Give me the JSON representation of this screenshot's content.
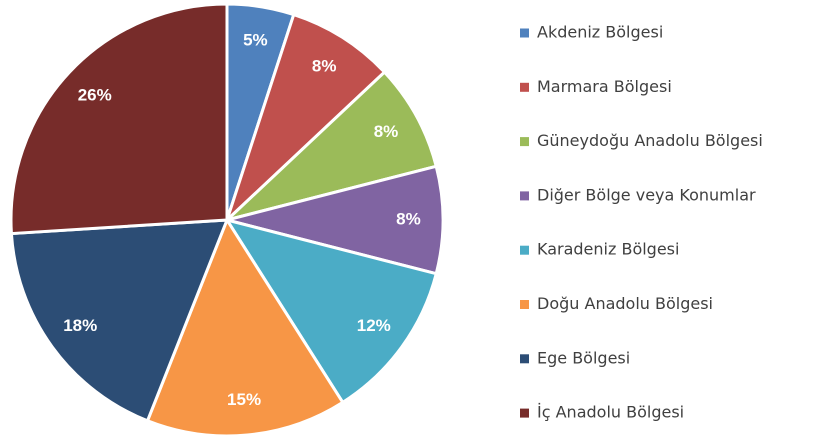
{
  "chart_data": {
    "type": "pie",
    "categories": [
      "Akdeniz Bölgesi",
      "Marmara Bölgesi",
      "Güneydoğu Anadolu Bölgesi",
      "Diğer Bölge veya Konumlar",
      "Karadeniz Bölgesi",
      "Doğu Anadolu Bölgesi",
      "Ege Bölgesi",
      "İç Anadolu Bölgesi"
    ],
    "values": [
      5,
      8,
      8,
      8,
      12,
      15,
      18,
      26
    ],
    "value_labels": [
      "5%",
      "8%",
      "8%",
      "8%",
      "12%",
      "15%",
      "18%",
      "26%"
    ],
    "colors": [
      "#4f81bd",
      "#c0504d",
      "#9bbb59",
      "#8064a2",
      "#4bacc6",
      "#f79646",
      "#2c4d75",
      "#772c2a"
    ],
    "legend": "right"
  }
}
